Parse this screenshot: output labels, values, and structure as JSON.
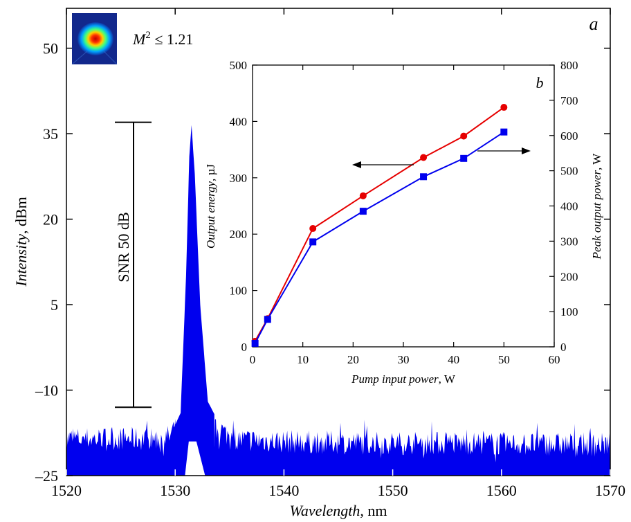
{
  "chart_data": [
    {
      "type": "line",
      "panel_label": "a",
      "x": [
        1520,
        1525,
        1528,
        1529.5,
        1530.5,
        1531,
        1531.3,
        1531.5,
        1531.8,
        1532.3,
        1533,
        1534.5,
        1536,
        1540,
        1545,
        1550,
        1555,
        1560,
        1565,
        1570
      ],
      "y": [
        -18.5,
        -18.5,
        -18.6,
        -18.2,
        -14,
        10,
        31,
        36.5,
        28,
        5,
        -12,
        -17.5,
        -18.7,
        -19,
        -19.2,
        -19.3,
        -19.3,
        -19.4,
        -19.5,
        -19.5
      ],
      "xlabel": "Wavelength",
      "xlabel_unit": ", nm",
      "ylabel": "Intensity",
      "ylabel_unit": ", dBm",
      "xlim": [
        1520,
        1570
      ],
      "ylim": [
        -25,
        57
      ],
      "xticks": [
        1520,
        1530,
        1540,
        1550,
        1560,
        1570
      ],
      "yticks": [
        -25,
        -10,
        5,
        20,
        35,
        50
      ],
      "ytick_labels": [
        "–25",
        "–10",
        "5",
        "20",
        "35",
        "50"
      ],
      "series_color": "#0000ee",
      "annotations": {
        "snr_text": "SNR 50 dB",
        "snr_top_db": 37,
        "snr_bottom_db": -13,
        "beam_quality_prefix": "M",
        "beam_quality_sup": "2",
        "beam_quality_suffix": " ≤ 1.21"
      }
    },
    {
      "type": "line",
      "panel_label": "b",
      "x_values": [
        0.5,
        3,
        12,
        22,
        34,
        42,
        50
      ],
      "series": [
        {
          "marker": "circle",
          "axis": "left",
          "color": "#e60000",
          "values": [
            10,
            50,
            210,
            268,
            336,
            374,
            425
          ]
        },
        {
          "marker": "square",
          "axis": "right",
          "color": "#0000ee",
          "values": [
            10,
            78,
            298,
            385,
            483,
            535,
            610
          ]
        }
      ],
      "xlabel": "Pump input power",
      "xlabel_unit": ", W",
      "ylabel_left": "Output energy",
      "ylabel_left_unit": ", µJ",
      "ylabel_right": "Peak output power",
      "ylabel_right_unit": ", W",
      "xlim": [
        0,
        60
      ],
      "ylim_left": [
        0,
        500
      ],
      "ylim_right": [
        0,
        800
      ],
      "xticks": [
        0,
        10,
        20,
        30,
        40,
        50,
        60
      ],
      "yticks_left": [
        0,
        100,
        200,
        300,
        400,
        500
      ],
      "yticks_right": [
        0,
        100,
        200,
        300,
        400,
        500,
        600,
        700,
        800
      ]
    }
  ]
}
